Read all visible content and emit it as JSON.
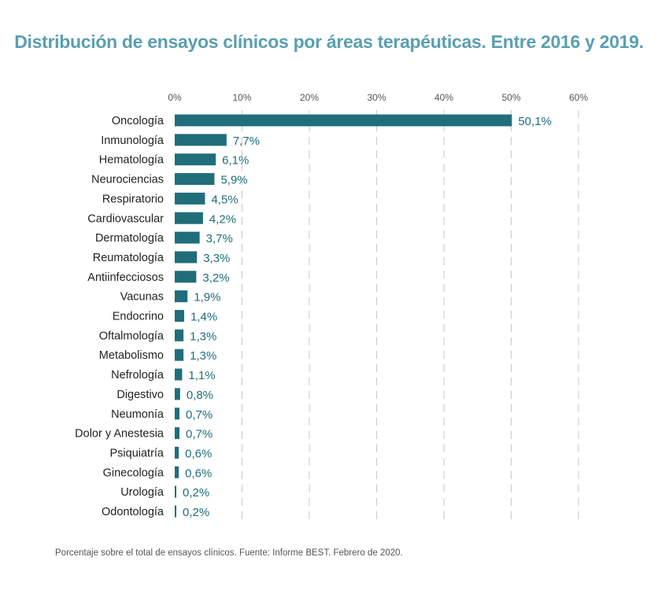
{
  "title": "Distribución de ensayos clínicos por áreas terapéuticas. Entre 2016 y 2019.",
  "footnote": "Porcentaje sobre el total de ensayos clínicos. Fuente: Informe BEST. Febrero de 2020.",
  "colors": {
    "bar": "#1f6e7a",
    "title": "#5a9fb0",
    "label": "#1f6e7a",
    "grid": "#c8c8c8"
  },
  "chart_data": {
    "type": "bar",
    "orientation": "horizontal",
    "xlim": [
      0,
      60
    ],
    "ticks": [
      "0%",
      "10%",
      "20%",
      "30%",
      "40%",
      "50%",
      "60%"
    ],
    "tick_values": [
      0,
      10,
      20,
      30,
      40,
      50,
      60
    ],
    "grid": "dashed vertical",
    "categories": [
      "Oncología",
      "Inmunología",
      "Hematología",
      "Neurociencias",
      "Respiratorio",
      "Cardiovascular",
      "Dermatología",
      "Reumatología",
      "Antiinfecciosos",
      "Vacunas",
      "Endocrino",
      "Oftalmología",
      "Metabolismo",
      "Nefrología",
      "Digestivo",
      "Neumonía",
      "Dolor y Anestesia",
      "Psiquiatría",
      "Ginecología",
      "Urología",
      "Odontología"
    ],
    "values": [
      50.1,
      7.7,
      6.1,
      5.9,
      4.5,
      4.2,
      3.7,
      3.3,
      3.2,
      1.9,
      1.4,
      1.3,
      1.3,
      1.1,
      0.8,
      0.7,
      0.7,
      0.6,
      0.6,
      0.2,
      0.2
    ],
    "value_labels": [
      "50,1%",
      "7,7%",
      "6,1%",
      "5,9%",
      "4,5%",
      "4,2%",
      "3,7%",
      "3,3%",
      "3,2%",
      "1,9%",
      "1,4%",
      "1,3%",
      "1,3%",
      "1,1%",
      "0,8%",
      "0,7%",
      "0,7%",
      "0,6%",
      "0,6%",
      "0,2%",
      "0,2%"
    ]
  }
}
